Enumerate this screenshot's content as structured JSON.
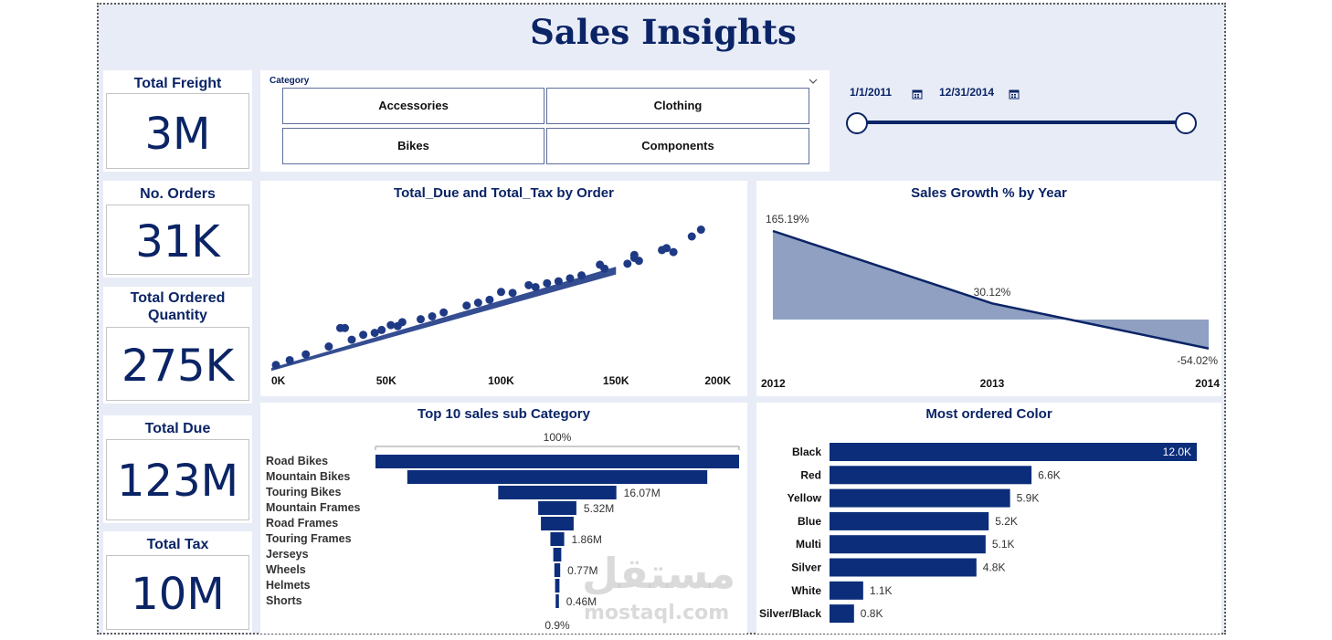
{
  "page": {
    "title": "Sales Insights"
  },
  "colors": {
    "navy": "#0b2466",
    "area_fill": "#8fa0c2",
    "bar": "#0b2d7a",
    "canvas_bg": "#e8ecf6"
  },
  "kpis": {
    "total_freight": {
      "label": "Total Freight",
      "value": "3M"
    },
    "no_orders": {
      "label": "No. Orders",
      "value": "31K"
    },
    "total_ordered_quantity": {
      "label": "Total Ordered Quantity",
      "value": "275K"
    },
    "total_due": {
      "label": "Total Due",
      "value": "123M"
    },
    "total_tax": {
      "label": "Total Tax",
      "value": "10M"
    }
  },
  "category_slicer": {
    "label": "Category",
    "dropdown_icon": "chevron-down-icon",
    "options": [
      "Accessories",
      "Clothing",
      "Bikes",
      "Components"
    ]
  },
  "date_slicer": {
    "start": "1/1/2011",
    "end": "12/31/2014",
    "calendar_icon": "calendar-icon"
  },
  "scatter": {
    "title": "Total_Due and Total_Tax by Order",
    "x_ticks": [
      "0K",
      "50K",
      "100K",
      "150K",
      "200K"
    ]
  },
  "growth": {
    "title": "Sales Growth % by Year",
    "x_ticks": [
      "2012",
      "2013",
      "2014"
    ],
    "point_labels": [
      "165.19%",
      "30.12%",
      "-54.02%"
    ]
  },
  "funnel": {
    "title": "Top 10 sales sub Category",
    "top_label": "100%",
    "bottom_label": "0.9%",
    "categories": [
      "Road Bikes",
      "Mountain Bikes",
      "Touring Bikes",
      "Mountain Frames",
      "Road Frames",
      "Touring Frames",
      "Jerseys",
      "Wheels",
      "Helmets",
      "Shorts"
    ],
    "value_labels": [
      "",
      "",
      "16.07M",
      "5.32M",
      "",
      "1.86M",
      "",
      "0.77M",
      "",
      "0.46M"
    ]
  },
  "colors_chart": {
    "title": "Most ordered Color",
    "categories": [
      "Black",
      "Red",
      "Yellow",
      "Blue",
      "Multi",
      "Silver",
      "White",
      "Silver/Black"
    ],
    "value_labels": [
      "12.0K",
      "6.6K",
      "5.9K",
      "5.2K",
      "5.1K",
      "4.8K",
      "1.1K",
      "0.8K"
    ]
  },
  "watermark": {
    "arabic": "مستقل",
    "latin": "mostaql.com"
  },
  "chart_data": [
    {
      "type": "scatter",
      "title": "Total_Due and Total_Tax by Order",
      "xlim": [
        0,
        200000
      ],
      "x_ticks": [
        "0K",
        "50K",
        "100K",
        "150K",
        "200K"
      ],
      "points": [
        [
          2000,
          1500
        ],
        [
          8000,
          4000
        ],
        [
          15000,
          7000
        ],
        [
          25000,
          11000
        ],
        [
          35000,
          14500
        ],
        [
          45000,
          18000
        ],
        [
          55000,
          21500
        ],
        [
          65000,
          25000
        ],
        [
          75000,
          28500
        ],
        [
          85000,
          32000
        ],
        [
          95000,
          35000
        ],
        [
          105000,
          38500
        ],
        [
          115000,
          41500
        ],
        [
          125000,
          44500
        ],
        [
          135000,
          47500
        ],
        [
          145000,
          51000
        ],
        [
          155000,
          53500
        ],
        [
          160000,
          55000
        ],
        [
          158000,
          58000
        ],
        [
          143000,
          53000
        ],
        [
          57000,
          23500
        ],
        [
          52000,
          22000
        ],
        [
          30000,
          20500
        ],
        [
          32000,
          20500
        ],
        [
          100000,
          39000
        ],
        [
          112000,
          42500
        ],
        [
          120000,
          43500
        ],
        [
          130000,
          46000
        ],
        [
          158000,
          56500
        ],
        [
          175000,
          59500
        ],
        [
          170000,
          60500
        ],
        [
          172000,
          61500
        ],
        [
          183000,
          67500
        ],
        [
          187000,
          71000
        ],
        [
          40000,
          17000
        ],
        [
          48000,
          19500
        ],
        [
          70000,
          26500
        ],
        [
          90000,
          33500
        ]
      ]
    },
    {
      "type": "area",
      "title": "Sales Growth % by Year",
      "x": [
        "2012",
        "2013",
        "2014"
      ],
      "values": [
        165.19,
        30.12,
        -54.02
      ]
    },
    {
      "type": "bar",
      "title": "Top 10 sales sub Category",
      "categories": [
        "Road Bikes",
        "Mountain Bikes",
        "Touring Bikes",
        "Mountain Frames",
        "Road Frames",
        "Touring Frames",
        "Jerseys",
        "Wheels",
        "Helmets",
        "Shorts"
      ],
      "values": [
        100,
        82.5,
        32.5,
        10.5,
        9,
        3.8,
        2.2,
        1.6,
        1.2,
        0.9
      ],
      "value_labels": [
        "",
        "",
        "16.07M",
        "5.32M",
        "",
        "1.86M",
        "",
        "0.77M",
        "",
        "0.46M"
      ]
    },
    {
      "type": "bar",
      "title": "Most ordered Color",
      "categories": [
        "Black",
        "Red",
        "Yellow",
        "Blue",
        "Multi",
        "Silver",
        "White",
        "Silver/Black"
      ],
      "values": [
        12.0,
        6.6,
        5.9,
        5.2,
        5.1,
        4.8,
        1.1,
        0.8
      ]
    }
  ]
}
